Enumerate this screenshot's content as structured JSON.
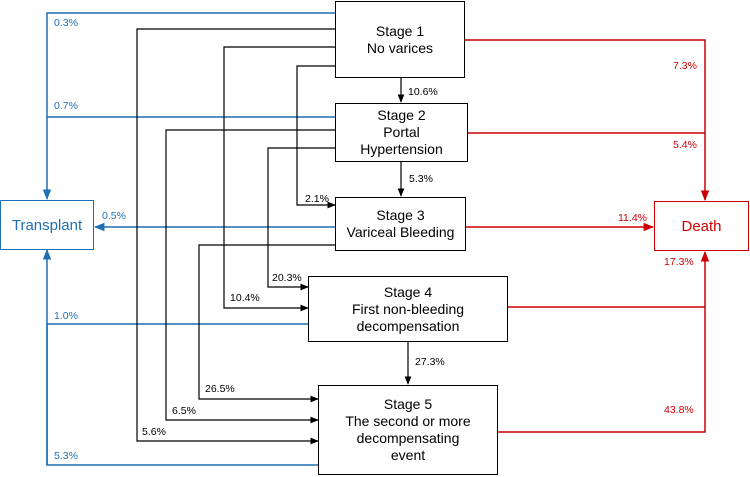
{
  "stages": [
    {
      "title": "Stage 1",
      "lines": [
        "No varices"
      ]
    },
    {
      "title": "Stage 2",
      "lines": [
        "Portal",
        "Hypertension"
      ]
    },
    {
      "title": "Stage 3",
      "lines": [
        "Variceal Bleeding"
      ]
    },
    {
      "title": "Stage 4",
      "lines": [
        "First non-bleeding",
        "decompensation"
      ]
    },
    {
      "title": "Stage 5",
      "lines": [
        "The second or more",
        "decompensating",
        "event"
      ]
    }
  ],
  "outcomes": {
    "transplant": "Transplant",
    "death": "Death"
  },
  "transitions": {
    "s1_s2": "10.6%",
    "s2_s3": "5.3%",
    "s1_s3": "2.1%",
    "s2_s4": "20.3%",
    "s1_s4": "10.4%",
    "s4_s5": "27.3%",
    "s3_s5": "26.5%",
    "s2_s5": "6.5%",
    "s1_s5": "5.6%"
  },
  "to_transplant": {
    "s1": "0.3%",
    "s2": "0.7%",
    "s3": "0.5%",
    "s4": "1.0%",
    "s5": "5.3%"
  },
  "to_death": {
    "s1": "7.3%",
    "s2": "5.4%",
    "s3": "11.4%",
    "s4": "17.3%",
    "s5": "43.8%"
  },
  "colors": {
    "transplant": "#1f6fb4",
    "death": "#cc0000",
    "transition": "#000000"
  }
}
